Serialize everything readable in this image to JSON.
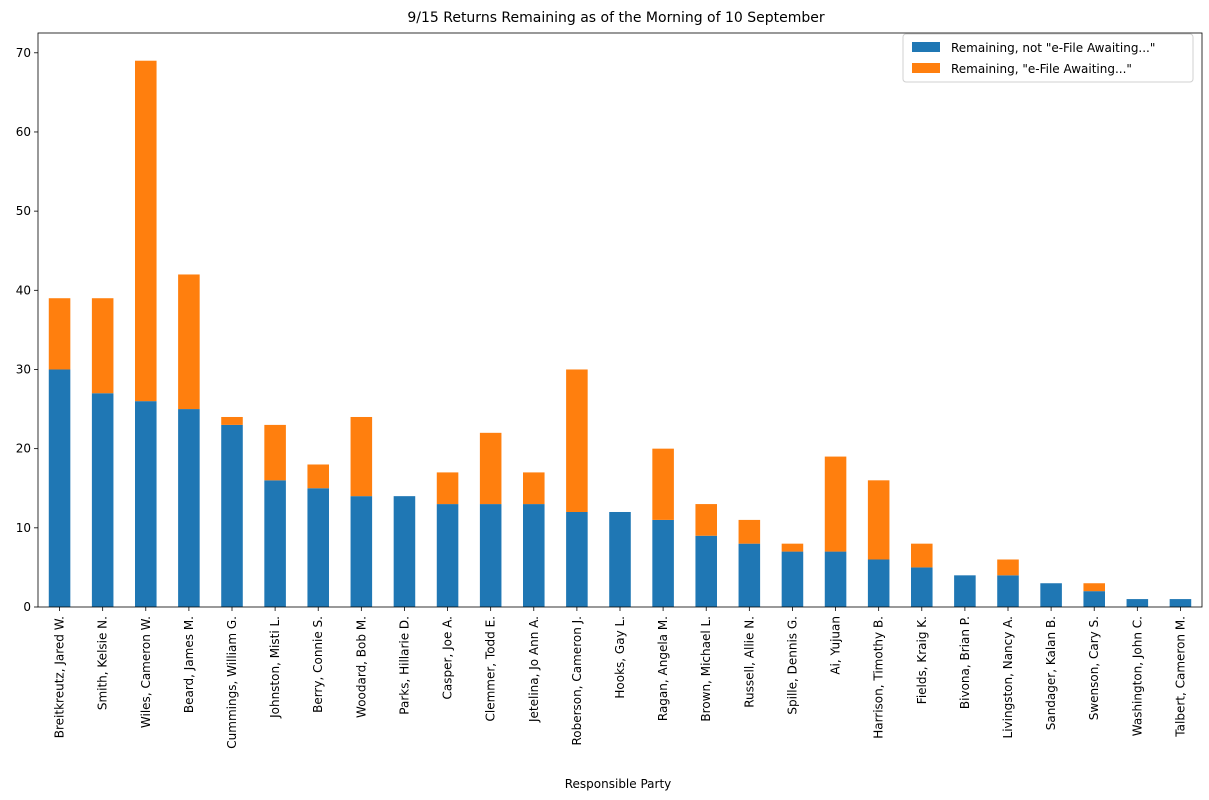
{
  "chart_data": {
    "type": "bar",
    "stacked": true,
    "title": "9/15 Returns Remaining as of the Morning of 10 September",
    "xlabel": "Responsible Party",
    "ylabel": "",
    "ylim": [
      0,
      72.5
    ],
    "yticks": [
      0,
      10,
      20,
      30,
      40,
      50,
      60,
      70
    ],
    "grid": false,
    "legend_position": "top-right",
    "categories": [
      "Breitkreutz, Jared W.",
      "Smith, Kelsie N.",
      "Wiles, Cameron W.",
      "Beard, James M.",
      "Cummings, William G.",
      "Johnston, Misti L.",
      "Berry, Connie S.",
      "Woodard, Bob M.",
      "Parks, Hillarie D.",
      "Casper, Joe A.",
      "Clemmer, Todd E.",
      "Jetelina, Jo Ann A.",
      "Roberson, Cameron J.",
      "Hooks, Gay L.",
      "Ragan, Angela M.",
      "Brown, Michael L.",
      "Russell, Allie N.",
      "Spille, Dennis G.",
      "Ai, Yujuan",
      "Harrison, Timothy B.",
      "Fields, Kraig K.",
      "Bivona, Brian P.",
      "Livingston, Nancy A.",
      "Sandager, Kalan B.",
      "Swenson, Cary S.",
      "Washington, John C.",
      "Talbert, Cameron M."
    ],
    "series": [
      {
        "name": "Remaining, not \"e-File Awaiting...\"",
        "color": "#1f77b4",
        "values": [
          30,
          27,
          26,
          25,
          23,
          16,
          15,
          14,
          14,
          13,
          13,
          13,
          12,
          12,
          11,
          9,
          8,
          7,
          7,
          6,
          5,
          4,
          4,
          3,
          2,
          1,
          1
        ]
      },
      {
        "name": "Remaining, \"e-File Awaiting...\"",
        "color": "#ff7f0e",
        "values": [
          9,
          12,
          43,
          17,
          1,
          7,
          3,
          10,
          0,
          4,
          9,
          4,
          18,
          0,
          9,
          4,
          3,
          1,
          12,
          10,
          3,
          0,
          2,
          0,
          1,
          0,
          0
        ]
      }
    ]
  }
}
